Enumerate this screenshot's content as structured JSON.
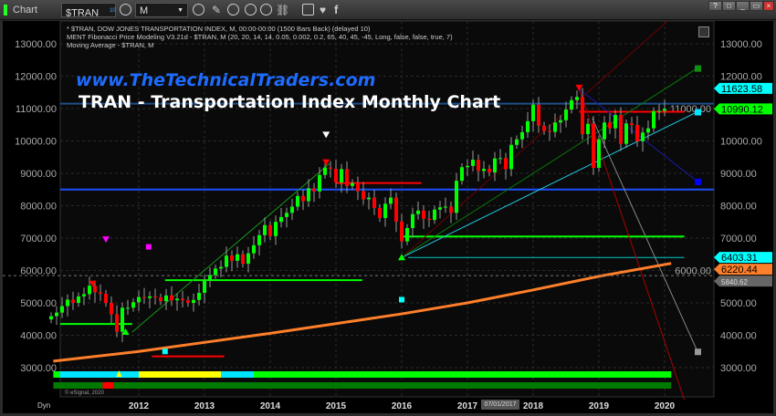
{
  "toolbar": {
    "window_label": "Chart",
    "symbol": "$TRAN",
    "symbol_badge": "10",
    "interval": "M",
    "window_buttons": [
      "?",
      "□",
      "_",
      "▭",
      "×"
    ]
  },
  "legend": {
    "line1": "* $TRAN, DOW JONES TRANSPORTATION INDEX, M, 00:00-00:00 (1500 Bars Back) (delayed 10)",
    "line2": "MENT Fibonacci Price Modeling V3.21d - $TRAN, M (20, 20, 14, 14, 0.05, 0.002, 0.2, 65, 40, 45, -45, Long, false, false, true, 7)",
    "line3": "Moving Average - $TRAN, M"
  },
  "watermark": "www.TheTechnicalTraders.com",
  "copyright": "© eSignal, 2020",
  "dyn_label": "Dyn",
  "crosshair_date": "07/01/2017",
  "chart_data": {
    "type": "candlestick",
    "title": "TRAN - Transportation Index Monthly Chart",
    "start_month": "2010-09",
    "closes": [
      4590,
      4700,
      4900,
      5100,
      5000,
      5200,
      5270,
      5530,
      5330,
      5280,
      5000,
      4650,
      4110,
      4850,
      4850,
      5020,
      5180,
      5150,
      5200,
      5170,
      5050,
      5230,
      5080,
      5130,
      5080,
      5000,
      5090,
      5310,
      5700,
      5860,
      6060,
      6110,
      6460,
      6300,
      6500,
      6210,
      6530,
      6780,
      7090,
      7400,
      7060,
      7500,
      7650,
      7780,
      7970,
      8300,
      8140,
      8540,
      8440,
      8950,
      9180,
      9140,
      8720,
      9130,
      8610,
      8700,
      8450,
      8200,
      8250,
      7930,
      7620,
      8060,
      8250,
      7510,
      6900,
      7310,
      7740,
      7850,
      7600,
      7560,
      7880,
      7950,
      7970,
      7780,
      8770,
      9190,
      9230,
      9420,
      9070,
      9140,
      9030,
      9460,
      9470,
      9130,
      9880,
      10050,
      10270,
      10610,
      11120,
      10470,
      10310,
      10280,
      10570,
      10640,
      10970,
      11260,
      11360,
      10210,
      10530,
      9170,
      10050,
      10570,
      10390,
      10800,
      9910,
      10540,
      10490,
      9990,
      10260,
      10390,
      10920,
      10930,
      10990
    ],
    "y_ticks": [
      "13000.00",
      "12000.00",
      "11000.00",
      "10000.00",
      "9000.00",
      "8000.00",
      "7000.00",
      "6000.00",
      "5000.00",
      "4000.00",
      "3000.00"
    ],
    "ylim": [
      2200,
      13400
    ],
    "x_ticks": [
      "2012",
      "2013",
      "2014",
      "2015",
      "2016",
      "2017",
      "2018",
      "2019",
      "2020"
    ],
    "moving_average": {
      "x": [
        2010.7,
        2012,
        2013,
        2014,
        2015,
        2016,
        2017,
        2018,
        2019,
        2020.1
      ],
      "y": [
        3200,
        3500,
        3780,
        4060,
        4360,
        4660,
        5000,
        5400,
        5820,
        6220
      ]
    },
    "price_labels": [
      {
        "text": "11623.58",
        "value": 11623.58,
        "color": "#00ffff"
      },
      {
        "text": "10990.12",
        "value": 10990.12,
        "color": "#00ff00"
      },
      {
        "text": "6403.31",
        "value": 6403.31,
        "color": "#00ffff"
      },
      {
        "text": "6220.44",
        "value": 6220.44,
        "color": "#ff7f2a"
      },
      {
        "text": "5840.62",
        "value": 5840.62,
        "color": "#666666"
      }
    ],
    "levels": [
      {
        "value": 8500,
        "from": 2010.7,
        "to": 2020.9,
        "color": "#1e4fff"
      },
      {
        "value": 11150,
        "from": 2010.7,
        "to": 2020.9,
        "color": "#1d4e89"
      },
      {
        "value": 7050,
        "from": 2016,
        "to": 2020.3,
        "color": "#00ff00"
      },
      {
        "value": 5700,
        "from": 2012.4,
        "to": 2015.4,
        "color": "#00ff00"
      },
      {
        "value": 4350,
        "from": 2010.7,
        "to": 2011.9,
        "color": "#00ff00"
      },
      {
        "value": 8700,
        "from": 2015,
        "to": 2016.3,
        "color": "#ff0000"
      },
      {
        "value": 10900,
        "from": 2018.7,
        "to": 2020.3,
        "color": "#ff0000"
      },
      {
        "value": 3350,
        "from": 2012.2,
        "to": 2013.3,
        "color": "#ff0000"
      },
      {
        "value": 6403,
        "from": 2016.1,
        "to": 2020.3,
        "color": "#00c8c8"
      }
    ],
    "projections": [
      {
        "from": [
          2016,
          6400
        ],
        "to": [
          2020.5,
          12250
        ],
        "color": "#0a7a0a",
        "end_marker": "#109010"
      },
      {
        "from": [
          2016,
          6400
        ],
        "to": [
          2020.5,
          10900
        ],
        "color": "#1ec8e0",
        "end_marker": "#00e5ff"
      },
      {
        "from": [
          2018.7,
          11600
        ],
        "to": [
          2020.5,
          8750
        ],
        "color": "#1a1aaa",
        "end_marker": "#0000ff"
      },
      {
        "from": [
          2018.9,
          10700
        ],
        "to": [
          2020.5,
          3500
        ],
        "color": "#888888",
        "end_marker": "#999999"
      },
      {
        "from": [
          2018.7,
          11600
        ],
        "to": [
          2020.3,
          2000
        ],
        "color": "#aa0000",
        "end_marker": ""
      },
      {
        "from": [
          2016,
          6400
        ],
        "to": [
          2020.1,
          13800
        ],
        "color": "#6a0000",
        "end_marker": ""
      },
      {
        "from": [
          2011.9,
          4100
        ],
        "to": [
          2014.9,
          9300
        ],
        "color": "#1a9a1a",
        "end_marker": ""
      }
    ],
    "markers": [
      {
        "x": 2014.85,
        "y": 10200,
        "shape": "triangle-down",
        "color": "#ffffff"
      },
      {
        "x": 2011.5,
        "y": 6970,
        "shape": "triangle-down",
        "color": "#ff00ff"
      },
      {
        "x": 2012.15,
        "y": 6730,
        "shape": "square",
        "color": "#ff00ff"
      },
      {
        "x": 2016,
        "y": 5100,
        "shape": "square",
        "color": "#00ffff"
      },
      {
        "x": 2012.4,
        "y": 3500,
        "shape": "square",
        "color": "#00ffff"
      },
      {
        "x": 2016,
        "y": 6400,
        "shape": "triangle-up",
        "color": "#00ff00"
      },
      {
        "x": 2011.8,
        "y": 4100,
        "shape": "triangle-up",
        "color": "#00ff00"
      },
      {
        "x": 2018.7,
        "y": 11650,
        "shape": "triangle-down",
        "color": "#ff0000"
      },
      {
        "x": 2014.85,
        "y": 9350,
        "shape": "triangle-down",
        "color": "#ff0000"
      },
      {
        "x": 2011.3,
        "y": 5600,
        "shape": "triangle-down",
        "color": "#ff0000"
      }
    ],
    "band1": [
      {
        "from": 2010.7,
        "to": 2010.8,
        "color": "#00ff00"
      },
      {
        "from": 2010.8,
        "to": 2012,
        "color": "#00e5ff"
      },
      {
        "from": 2012,
        "to": 2013.25,
        "color": "#ffff00"
      },
      {
        "from": 2013.25,
        "to": 2013.75,
        "color": "#00e5ff"
      },
      {
        "from": 2013.75,
        "to": 2020.1,
        "color": "#00ff00"
      }
    ],
    "band2": [
      {
        "from": 2010.7,
        "to": 2011.45,
        "color": "#007a00"
      },
      {
        "from": 2011.45,
        "to": 2011.62,
        "color": "#ff0000"
      },
      {
        "from": 2011.62,
        "to": 2020.1,
        "color": "#007a00"
      }
    ],
    "up_color": "#00ff00",
    "down_color": "#ff0000"
  }
}
